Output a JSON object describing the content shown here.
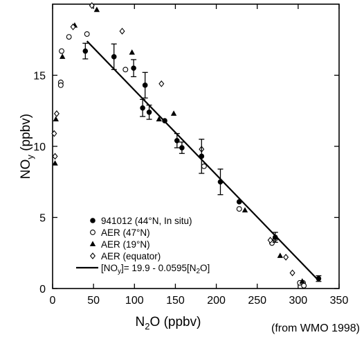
{
  "chart_data": {
    "type": "scatter",
    "title": "",
    "xlabel": "N₂O (ppbv)",
    "xlabel_main": "N",
    "xlabel_sub": "2",
    "xlabel_rest": "O (ppbv)",
    "ylabel": "NOᵧ (ppbv)",
    "ylabel_main": "NO",
    "ylabel_sub": "y",
    "ylabel_rest": " (ppbv)",
    "xlim": [
      0,
      350
    ],
    "ylim": [
      0,
      20
    ],
    "xticks": [
      0,
      50,
      100,
      150,
      200,
      250,
      300,
      350
    ],
    "yticks": [
      0,
      5,
      10,
      15
    ],
    "xtick_labels": [
      "0",
      "50",
      "100",
      "150",
      "200",
      "250",
      "300",
      "350"
    ],
    "ytick_labels": [
      "0",
      "5",
      "10",
      "15"
    ],
    "legend_position": "bottom-left",
    "series": [
      {
        "name": "941012 (44°N, In situ)",
        "marker": "filled-circle",
        "points": [
          {
            "x": 40,
            "y": 16.7,
            "err": 0.55
          },
          {
            "x": 75,
            "y": 16.3,
            "err": 0.9
          },
          {
            "x": 99,
            "y": 15.5,
            "err": 0.6
          },
          {
            "x": 110,
            "y": 12.7,
            "err": 0.6
          },
          {
            "x": 113,
            "y": 14.3,
            "err": 0.9
          },
          {
            "x": 118,
            "y": 12.4,
            "err": 0.5
          },
          {
            "x": 137,
            "y": 11.8,
            "err": 0
          },
          {
            "x": 152,
            "y": 10.4,
            "err": 0.5
          },
          {
            "x": 158,
            "y": 9.9,
            "err": 0.4
          },
          {
            "x": 182,
            "y": 9.3,
            "err": 1.2
          },
          {
            "x": 205,
            "y": 7.5,
            "err": 0.9
          },
          {
            "x": 228,
            "y": 6.1,
            "err": 0
          },
          {
            "x": 272,
            "y": 3.6,
            "err": 0.35
          },
          {
            "x": 325,
            "y": 0.7,
            "err": 0.2
          }
        ]
      },
      {
        "name": "AER (47°N)",
        "marker": "open-circle",
        "points": [
          {
            "x": 10,
            "y": 14.5
          },
          {
            "x": 10,
            "y": 14.3
          },
          {
            "x": 11,
            "y": 16.7
          },
          {
            "x": 20,
            "y": 17.7
          },
          {
            "x": 42,
            "y": 17.9
          },
          {
            "x": 89,
            "y": 15.4
          },
          {
            "x": 185,
            "y": 8.6
          },
          {
            "x": 228,
            "y": 5.6
          },
          {
            "x": 268,
            "y": 3.2
          },
          {
            "x": 272,
            "y": 3.5
          },
          {
            "x": 302,
            "y": 0.4
          },
          {
            "x": 306,
            "y": 0.4
          },
          {
            "x": 307,
            "y": 0.2
          }
        ]
      },
      {
        "name": "AER (19°N)",
        "marker": "filled-triangle",
        "points": [
          {
            "x": 3,
            "y": 8.8
          },
          {
            "x": 4,
            "y": 11.9
          },
          {
            "x": 12,
            "y": 16.3
          },
          {
            "x": 27,
            "y": 18.5
          },
          {
            "x": 54,
            "y": 19.6
          },
          {
            "x": 97,
            "y": 16.6
          },
          {
            "x": 130,
            "y": 11.9
          },
          {
            "x": 148,
            "y": 12.3
          },
          {
            "x": 235,
            "y": 5.5
          },
          {
            "x": 278,
            "y": 2.3
          },
          {
            "x": 305,
            "y": 0.5
          }
        ]
      },
      {
        "name": "AER (equator)",
        "marker": "open-diamond",
        "points": [
          {
            "x": 2,
            "y": 10.9
          },
          {
            "x": 3,
            "y": 9.3
          },
          {
            "x": 5,
            "y": 12.3
          },
          {
            "x": 25,
            "y": 18.4
          },
          {
            "x": 48,
            "y": 19.9
          },
          {
            "x": 85,
            "y": 18.1
          },
          {
            "x": 133,
            "y": 14.4
          },
          {
            "x": 182,
            "y": 9.8
          },
          {
            "x": 266,
            "y": 3.4
          },
          {
            "x": 285,
            "y": 2.2
          },
          {
            "x": 293,
            "y": 1.1
          }
        ]
      }
    ],
    "fit_line": {
      "label": "[NOᵧ]= 19.9 - 0.0595[N₂O]",
      "label_parts": [
        "[NO",
        "y",
        "]= 19.9 - 0.0595[N",
        "2",
        "O]"
      ],
      "intercept": 19.9,
      "slope": -0.0595,
      "x_range": [
        42,
        325
      ]
    },
    "source_note": "(from WMO 1998)"
  }
}
